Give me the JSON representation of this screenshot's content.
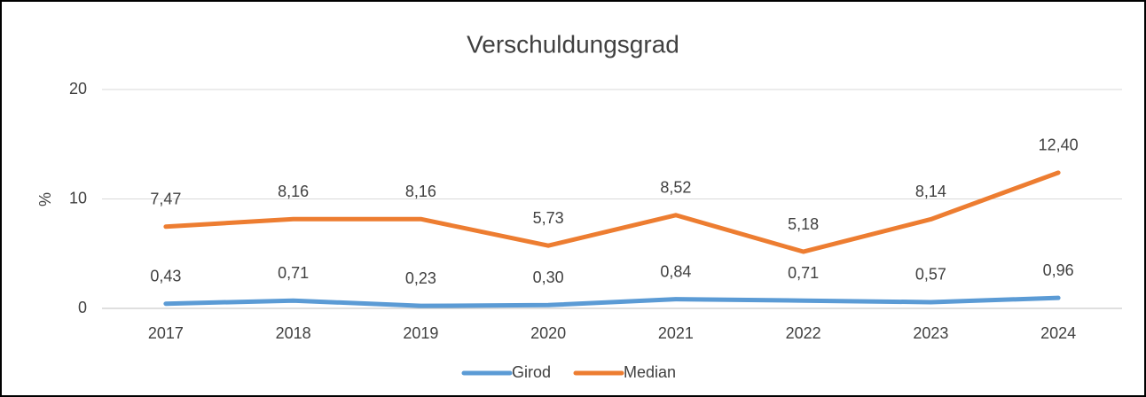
{
  "chart_data": {
    "type": "line",
    "title": "Verschuldungsgrad",
    "y_label": "%",
    "categories": [
      "2017",
      "2018",
      "2019",
      "2020",
      "2021",
      "2022",
      "2023",
      "2024"
    ],
    "series": [
      {
        "name": "Girod",
        "color": "#5b9bd5",
        "values": [
          0.43,
          0.71,
          0.23,
          0.3,
          0.84,
          0.71,
          0.57,
          0.96
        ],
        "value_labels": [
          "0,43",
          "0,71",
          "0,23",
          "0,30",
          "0,84",
          "0,71",
          "0,57",
          "0,96"
        ]
      },
      {
        "name": "Median",
        "color": "#ed7d31",
        "values": [
          7.47,
          8.16,
          8.16,
          5.73,
          8.52,
          5.18,
          8.14,
          12.4
        ],
        "value_labels": [
          "7,47",
          "8,16",
          "8,16",
          "5,73",
          "8,52",
          "5,18",
          "8,14",
          "12,40"
        ]
      }
    ],
    "ylim": [
      0,
      20
    ],
    "yticks": [
      0,
      10,
      20
    ],
    "grid": true,
    "legend": "bottom"
  }
}
